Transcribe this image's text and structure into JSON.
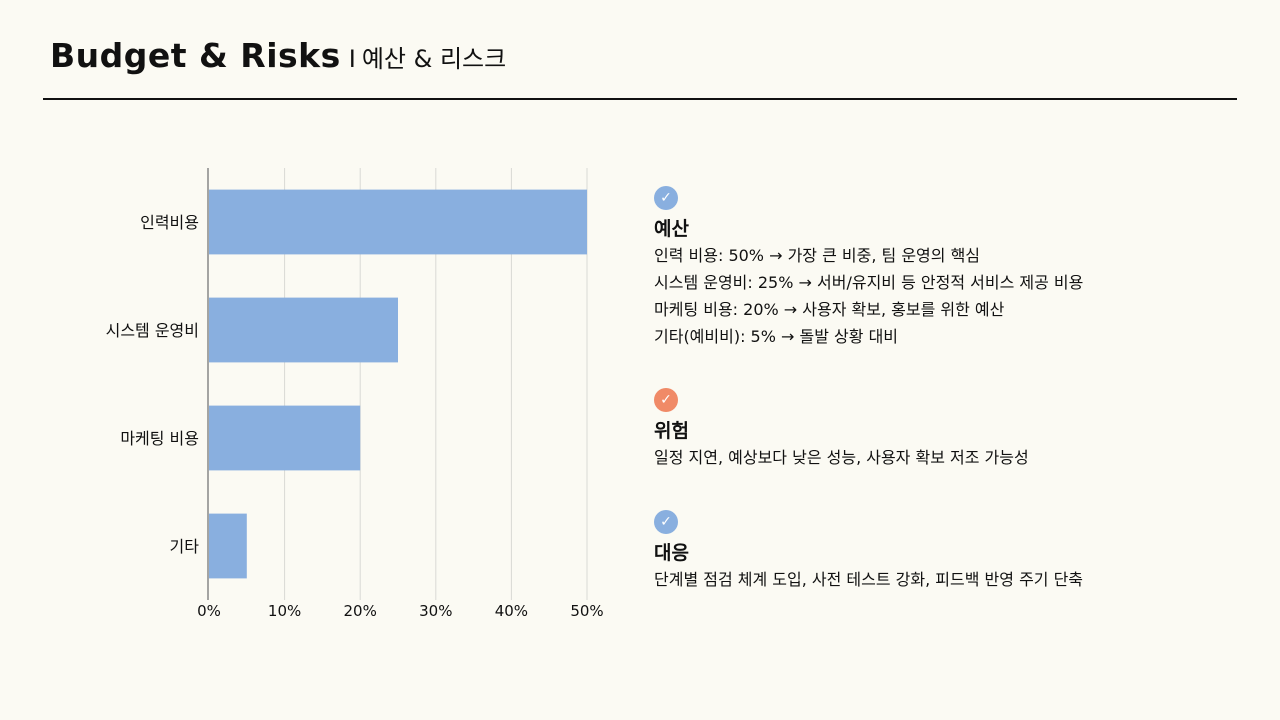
{
  "header": {
    "title_en": "Budget & Risks",
    "separator": "I",
    "title_ko": "예산 & 리스크"
  },
  "colors": {
    "bar": "#89afdf",
    "check_blue": "#89afdf",
    "check_orange": "#f08a67",
    "axis": "#888888",
    "grid": "#d9d9d4"
  },
  "chart_data": {
    "type": "bar",
    "orientation": "horizontal",
    "categories": [
      "인력비용",
      "시스템 운영비",
      "마케팅 비용",
      "기타"
    ],
    "values": [
      50,
      25,
      20,
      5
    ],
    "xlim": [
      0,
      50
    ],
    "x_ticks": [
      "0%",
      "10%",
      "20%",
      "30%",
      "40%",
      "50%"
    ],
    "x_tick_values": [
      0,
      10,
      20,
      30,
      40,
      50
    ],
    "grid": true,
    "title": "",
    "xlabel": "",
    "ylabel": ""
  },
  "sections": [
    {
      "icon": "check-icon",
      "color": "blue",
      "title": "예산",
      "lines": [
        "인력 비용: 50% → 가장 큰 비중, 팀 운영의 핵심",
        "시스템 운영비: 25% → 서버/유지비 등 안정적 서비스 제공 비용",
        "마케팅 비용: 20% → 사용자 확보, 홍보를 위한 예산",
        "기타(예비비): 5% → 돌발 상황 대비"
      ]
    },
    {
      "icon": "check-icon",
      "color": "orange",
      "title": "위험",
      "lines": [
        "일정 지연, 예상보다 낮은 성능, 사용자 확보 저조 가능성"
      ]
    },
    {
      "icon": "check-icon",
      "color": "blue",
      "title": "대응",
      "lines": [
        "단계별 점검 체계 도입, 사전 테스트 강화, 피드백 반영 주기 단축"
      ]
    }
  ]
}
